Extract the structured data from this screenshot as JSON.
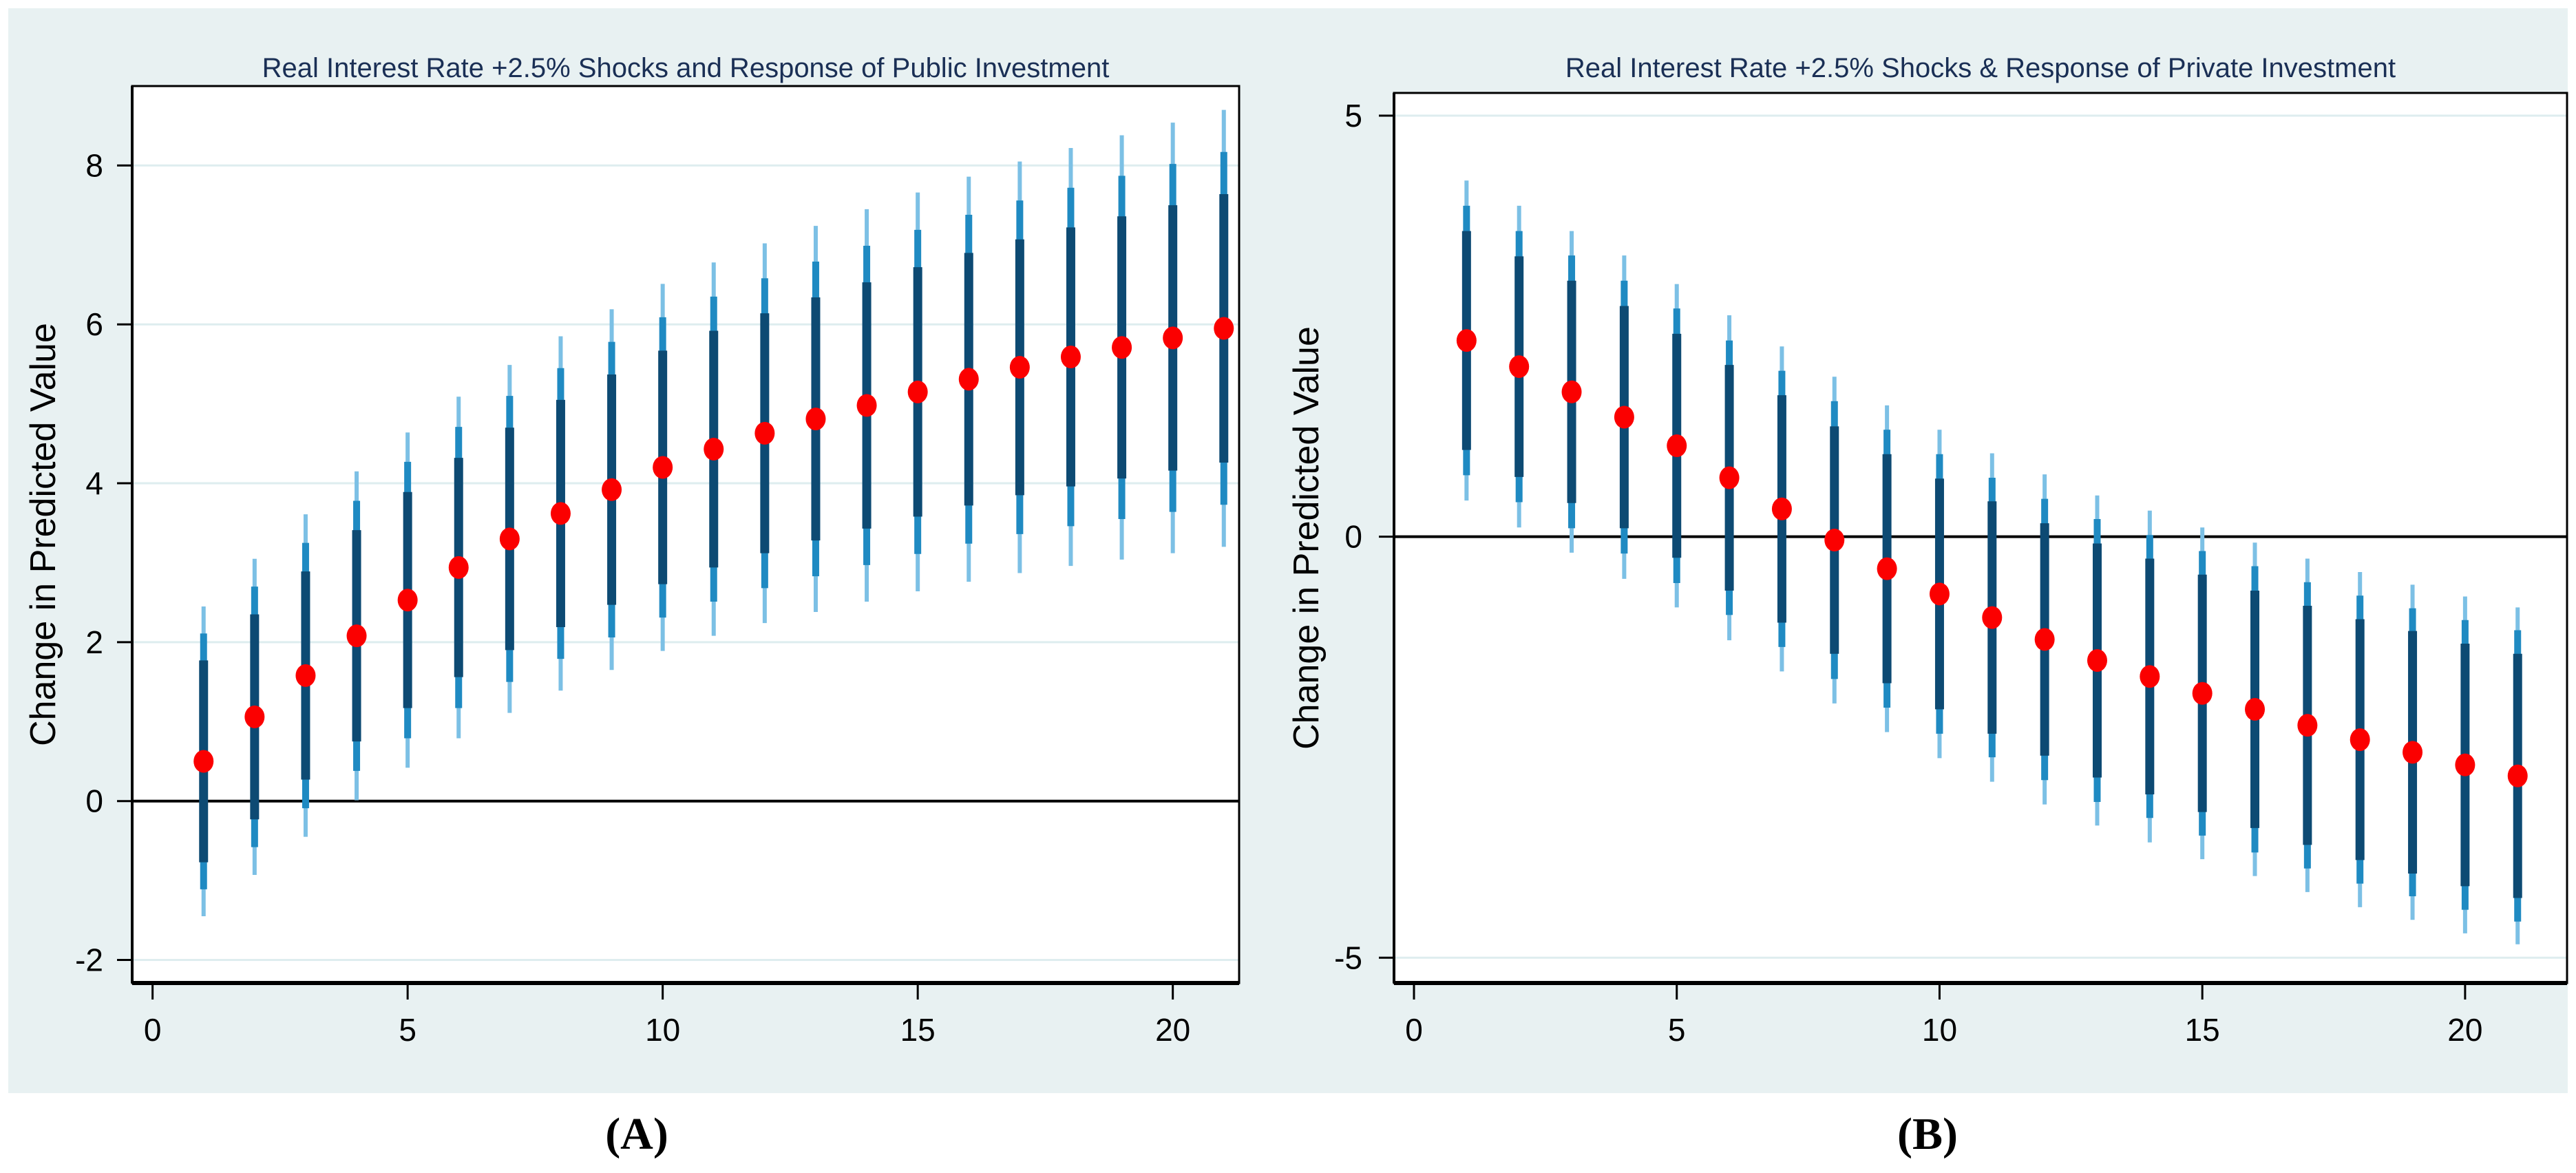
{
  "figure": {
    "background_color": "#FFFFFF",
    "band_color": "#E8F1F2",
    "captions": {
      "a": "(A)",
      "b": "(B)"
    }
  },
  "style": {
    "plot_bg": "#FFFFFF",
    "grid_color": "#DEEDEF",
    "axis_color": "#000000",
    "title_color": "#1A2F55",
    "tick_label_color": "#000000",
    "dot_color": "#FB0000",
    "inner_ci_color": "#0D4A73",
    "mid_ci_color": "#1F8AC2",
    "outer_ci_color": "#7CC0E5",
    "ref_line_color": "#000000"
  },
  "chart_data": [
    {
      "type": "scatter",
      "variant": "point-estimates-with-nested-confidence-intervals",
      "title": "Real Interest Rate +2.5% Shocks and Response of Public Investment",
      "ylabel": "Change in Predicted Value",
      "xlabel": "",
      "caption": "(A)",
      "legend_position": "none",
      "grid": "horizontal",
      "ref_line_y": 0,
      "yticks": [
        -2,
        0,
        2,
        4,
        6,
        8
      ],
      "xticks": [
        0,
        5,
        10,
        15,
        20
      ],
      "ylim": [
        -2.29,
        9.0
      ],
      "xlim": [
        -0.4,
        21.3
      ],
      "x": [
        1,
        2,
        3,
        4,
        5,
        6,
        7,
        8,
        9,
        10,
        11,
        12,
        13,
        14,
        15,
        16,
        17,
        18,
        19,
        20,
        21
      ],
      "dot": [
        0.5,
        1.06,
        1.58,
        2.08,
        2.53,
        2.94,
        3.3,
        3.62,
        3.92,
        4.2,
        4.43,
        4.63,
        4.81,
        4.98,
        5.15,
        5.31,
        5.46,
        5.59,
        5.71,
        5.83,
        5.95
      ],
      "ci_inner_lo": [
        -0.77,
        -0.23,
        0.27,
        0.75,
        1.17,
        1.56,
        1.9,
        2.19,
        2.47,
        2.73,
        2.94,
        3.12,
        3.28,
        3.43,
        3.58,
        3.72,
        3.85,
        3.96,
        4.06,
        4.16,
        4.26
      ],
      "ci_inner_hi": [
        1.77,
        2.35,
        2.89,
        3.41,
        3.89,
        4.32,
        4.7,
        5.05,
        5.37,
        5.67,
        5.92,
        6.14,
        6.34,
        6.53,
        6.72,
        6.9,
        7.07,
        7.22,
        7.36,
        7.5,
        7.64
      ],
      "ci_mid_lo": [
        -1.11,
        -0.58,
        -0.09,
        0.38,
        0.79,
        1.17,
        1.5,
        1.79,
        2.06,
        2.31,
        2.51,
        2.68,
        2.83,
        2.97,
        3.11,
        3.24,
        3.36,
        3.46,
        3.55,
        3.64,
        3.73
      ],
      "ci_mid_hi": [
        2.11,
        2.7,
        3.25,
        3.78,
        4.27,
        4.71,
        5.1,
        5.45,
        5.78,
        6.09,
        6.35,
        6.58,
        6.79,
        6.99,
        7.19,
        7.38,
        7.56,
        7.72,
        7.87,
        8.02,
        8.17
      ],
      "ci_outer_lo": [
        -1.45,
        -0.93,
        -0.45,
        0.01,
        0.42,
        0.79,
        1.11,
        1.39,
        1.65,
        1.89,
        2.08,
        2.24,
        2.38,
        2.51,
        2.64,
        2.76,
        2.87,
        2.96,
        3.04,
        3.12,
        3.2
      ],
      "ci_outer_hi": [
        2.45,
        3.05,
        3.61,
        4.15,
        4.64,
        5.09,
        5.49,
        5.85,
        6.19,
        6.51,
        6.78,
        7.02,
        7.24,
        7.45,
        7.66,
        7.86,
        8.05,
        8.22,
        8.38,
        8.54,
        8.7
      ]
    },
    {
      "type": "scatter",
      "variant": "point-estimates-with-nested-confidence-intervals",
      "title": "Real Interest Rate +2.5% Shocks & Response of Private Investment",
      "ylabel": "Change in Predicted Value",
      "xlabel": "",
      "caption": "(B)",
      "legend_position": "none",
      "grid": "horizontal",
      "ref_line_y": 0,
      "yticks": [
        -5,
        0,
        5
      ],
      "xticks": [
        0,
        5,
        10,
        15,
        20
      ],
      "ylim": [
        -5.3,
        5.27
      ],
      "xlim": [
        -0.38,
        21.94
      ],
      "x": [
        1,
        2,
        3,
        4,
        5,
        6,
        7,
        8,
        9,
        10,
        11,
        12,
        13,
        14,
        15,
        16,
        17,
        18,
        19,
        20,
        21
      ],
      "dot": [
        2.33,
        2.02,
        1.72,
        1.42,
        1.08,
        0.7,
        0.33,
        -0.04,
        -0.38,
        -0.68,
        -0.96,
        -1.22,
        -1.47,
        -1.66,
        -1.86,
        -2.05,
        -2.24,
        -2.41,
        -2.56,
        -2.71,
        -2.84
      ],
      "ci_inner_lo": [
        1.03,
        0.71,
        0.4,
        0.1,
        -0.25,
        -0.64,
        -1.02,
        -1.39,
        -1.74,
        -2.05,
        -2.34,
        -2.6,
        -2.86,
        -3.06,
        -3.27,
        -3.46,
        -3.66,
        -3.84,
        -4.0,
        -4.15,
        -4.29
      ],
      "ci_inner_hi": [
        3.63,
        3.33,
        3.04,
        2.74,
        2.41,
        2.04,
        1.68,
        1.31,
        0.98,
        0.69,
        0.42,
        0.16,
        -0.08,
        -0.26,
        -0.45,
        -0.64,
        -0.82,
        -0.98,
        -1.12,
        -1.27,
        -1.39
      ],
      "ci_mid_lo": [
        0.73,
        0.41,
        0.1,
        -0.2,
        -0.55,
        -0.93,
        -1.31,
        -1.69,
        -2.03,
        -2.34,
        -2.62,
        -2.89,
        -3.15,
        -3.34,
        -3.55,
        -3.75,
        -3.94,
        -4.12,
        -4.27,
        -4.43,
        -4.57
      ],
      "ci_mid_hi": [
        3.93,
        3.63,
        3.34,
        3.04,
        2.71,
        2.33,
        1.97,
        1.61,
        1.27,
        0.98,
        0.7,
        0.45,
        0.21,
        0.02,
        -0.17,
        -0.35,
        -0.54,
        -0.7,
        -0.85,
        -0.99,
        -1.11
      ],
      "ci_outer_lo": [
        0.43,
        0.11,
        -0.19,
        -0.5,
        -0.84,
        -1.23,
        -1.6,
        -1.98,
        -2.32,
        -2.63,
        -2.91,
        -3.18,
        -3.43,
        -3.63,
        -3.83,
        -4.03,
        -4.22,
        -4.4,
        -4.55,
        -4.71,
        -4.84
      ],
      "ci_outer_hi": [
        4.23,
        3.93,
        3.63,
        3.34,
        3.0,
        2.63,
        2.26,
        1.9,
        1.56,
        1.27,
        0.99,
        0.74,
        0.49,
        0.31,
        0.11,
        -0.07,
        -0.26,
        -0.42,
        -0.57,
        -0.71,
        -0.84
      ]
    }
  ]
}
